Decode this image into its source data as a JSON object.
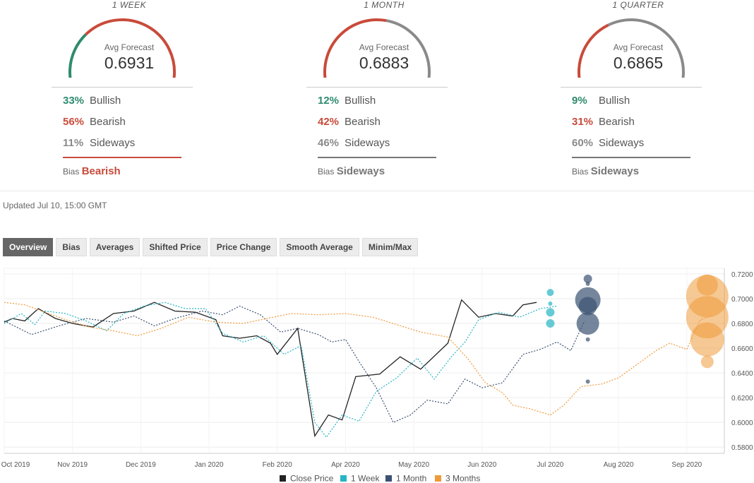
{
  "panels": [
    {
      "title": "1 WEEK",
      "avg_label": "Avg Forecast",
      "avg_value": "0.6931",
      "gauge": {
        "green": 0.33,
        "red": 0.56,
        "gray": 0.11
      },
      "rows": [
        {
          "pct": "33%",
          "label": "Bullish"
        },
        {
          "pct": "56%",
          "label": "Bearish"
        },
        {
          "pct": "11%",
          "label": "Sideways"
        }
      ],
      "bias_label": "Bias",
      "bias_value": "Bearish",
      "bias_color": "#c84b3a"
    },
    {
      "title": "1 MONTH",
      "avg_label": "Avg Forecast",
      "avg_value": "0.6883",
      "gauge": {
        "green": 0.12,
        "red": 0.42,
        "gray": 0.46
      },
      "rows": [
        {
          "pct": "12%",
          "label": "Bullish"
        },
        {
          "pct": "42%",
          "label": "Bearish"
        },
        {
          "pct": "46%",
          "label": "Sideways"
        }
      ],
      "bias_label": "Bias",
      "bias_value": "Sideways",
      "bias_color": "#777777"
    },
    {
      "title": "1 QUARTER",
      "avg_label": "Avg Forecast",
      "avg_value": "0.6865",
      "gauge": {
        "green": 0.09,
        "red": 0.31,
        "gray": 0.6
      },
      "rows": [
        {
          "pct": "9%",
          "label": "Bullish"
        },
        {
          "pct": "31%",
          "label": "Bearish"
        },
        {
          "pct": "60%",
          "label": "Sideways"
        }
      ],
      "bias_label": "Bias",
      "bias_value": "Sideways",
      "bias_color": "#777777"
    }
  ],
  "colors": {
    "bullish": "#2e8b6e",
    "bearish": "#c84b3a",
    "sideways": "#8a8a8a",
    "close": "#222222",
    "week": "#26b5c4",
    "month": "#3b5272",
    "quarter": "#ef9a3a"
  },
  "updated": "Updated Jul 10, 15:00 GMT",
  "tabs": [
    "Overview",
    "Bias",
    "Averages",
    "Shifted Price",
    "Price Change",
    "Smooth Average",
    "Minim/Max"
  ],
  "active_tab": 0,
  "chart_data": {
    "type": "line",
    "x_ticks": [
      "Oct 2019",
      "Nov 2019",
      "Dec 2019",
      "Jan 2020",
      "Feb 2020",
      "Apr 2020",
      "May 2020",
      "Jun 2020",
      "Jul 2020",
      "Aug 2020",
      "Sep 2020"
    ],
    "x_tick_months": [
      0,
      1,
      2,
      3,
      4,
      5,
      6,
      7,
      8,
      9,
      10
    ],
    "y_ticks": [
      "0.7200",
      "0.7000",
      "0.6800",
      "0.6600",
      "0.6400",
      "0.6200",
      "0.6000",
      "0.5800"
    ],
    "ylim": [
      0.575,
      0.7245
    ],
    "xlim": [
      0,
      10.55
    ],
    "legend": [
      "Close Price",
      "1 Week",
      "1 Month",
      "3 Months"
    ],
    "series": [
      {
        "name": "Close Price",
        "style": "solid",
        "points": [
          [
            0,
            0.681
          ],
          [
            0.12,
            0.684
          ],
          [
            0.3,
            0.682
          ],
          [
            0.5,
            0.692
          ],
          [
            0.75,
            0.684
          ],
          [
            1,
            0.68
          ],
          [
            1.3,
            0.677
          ],
          [
            1.6,
            0.688
          ],
          [
            1.9,
            0.69
          ],
          [
            2.2,
            0.697
          ],
          [
            2.5,
            0.69
          ],
          [
            2.8,
            0.689
          ],
          [
            3.1,
            0.683
          ],
          [
            3.2,
            0.67
          ],
          [
            3.45,
            0.668
          ],
          [
            3.7,
            0.67
          ],
          [
            3.9,
            0.664
          ],
          [
            4.0,
            0.655
          ],
          [
            4.3,
            0.676
          ],
          [
            4.55,
            0.589
          ],
          [
            4.75,
            0.606
          ],
          [
            4.95,
            0.602
          ],
          [
            5.15,
            0.637
          ],
          [
            5.5,
            0.639
          ],
          [
            5.8,
            0.653
          ],
          [
            6.1,
            0.643
          ],
          [
            6.5,
            0.664
          ],
          [
            6.7,
            0.699
          ],
          [
            6.95,
            0.685
          ],
          [
            7.2,
            0.688
          ],
          [
            7.45,
            0.686
          ],
          [
            7.6,
            0.695
          ],
          [
            7.8,
            0.697
          ]
        ]
      },
      {
        "name": "1 Week",
        "style": "dotted",
        "points": [
          [
            0,
            0.68
          ],
          [
            0.25,
            0.688
          ],
          [
            0.45,
            0.679
          ],
          [
            0.6,
            0.69
          ],
          [
            0.9,
            0.688
          ],
          [
            1.2,
            0.682
          ],
          [
            1.5,
            0.674
          ],
          [
            1.75,
            0.688
          ],
          [
            2.05,
            0.694
          ],
          [
            2.35,
            0.697
          ],
          [
            2.65,
            0.692
          ],
          [
            2.95,
            0.692
          ],
          [
            3.2,
            0.672
          ],
          [
            3.5,
            0.665
          ],
          [
            3.8,
            0.67
          ],
          [
            4.1,
            0.655
          ],
          [
            4.35,
            0.662
          ],
          [
            4.55,
            0.6
          ],
          [
            4.72,
            0.588
          ],
          [
            4.95,
            0.606
          ],
          [
            5.2,
            0.601
          ],
          [
            5.45,
            0.625
          ],
          [
            5.75,
            0.636
          ],
          [
            6.05,
            0.652
          ],
          [
            6.3,
            0.635
          ],
          [
            6.55,
            0.653
          ],
          [
            6.75,
            0.665
          ],
          [
            6.95,
            0.683
          ],
          [
            7.25,
            0.689
          ],
          [
            7.55,
            0.685
          ],
          [
            7.85,
            0.692
          ],
          [
            8.1,
            0.694
          ]
        ]
      },
      {
        "name": "1 Month",
        "style": "dotted",
        "points": [
          [
            0,
            0.682
          ],
          [
            0.4,
            0.671
          ],
          [
            0.8,
            0.678
          ],
          [
            1.2,
            0.684
          ],
          [
            1.6,
            0.681
          ],
          [
            1.9,
            0.686
          ],
          [
            2.2,
            0.678
          ],
          [
            2.5,
            0.684
          ],
          [
            2.9,
            0.69
          ],
          [
            3.2,
            0.687
          ],
          [
            3.45,
            0.694
          ],
          [
            3.75,
            0.687
          ],
          [
            4.05,
            0.673
          ],
          [
            4.3,
            0.676
          ],
          [
            4.6,
            0.671
          ],
          [
            4.8,
            0.665
          ],
          [
            5.0,
            0.667
          ],
          [
            5.2,
            0.649
          ],
          [
            5.45,
            0.628
          ],
          [
            5.7,
            0.6
          ],
          [
            5.95,
            0.606
          ],
          [
            6.2,
            0.618
          ],
          [
            6.5,
            0.615
          ],
          [
            6.75,
            0.635
          ],
          [
            7.0,
            0.628
          ],
          [
            7.3,
            0.632
          ],
          [
            7.6,
            0.655
          ],
          [
            7.85,
            0.659
          ],
          [
            8.1,
            0.665
          ],
          [
            8.3,
            0.658
          ],
          [
            8.5,
            0.682
          ]
        ]
      },
      {
        "name": "3 Months",
        "style": "dotted",
        "points": [
          [
            0,
            0.697
          ],
          [
            0.3,
            0.695
          ],
          [
            0.6,
            0.689
          ],
          [
            0.9,
            0.683
          ],
          [
            1.25,
            0.677
          ],
          [
            1.6,
            0.674
          ],
          [
            1.95,
            0.67
          ],
          [
            2.3,
            0.676
          ],
          [
            2.7,
            0.685
          ],
          [
            3.1,
            0.681
          ],
          [
            3.5,
            0.68
          ],
          [
            3.85,
            0.684
          ],
          [
            4.2,
            0.688
          ],
          [
            4.6,
            0.687
          ],
          [
            5.0,
            0.688
          ],
          [
            5.4,
            0.685
          ],
          [
            5.75,
            0.679
          ],
          [
            6.1,
            0.673
          ],
          [
            6.5,
            0.669
          ],
          [
            6.8,
            0.651
          ],
          [
            7.05,
            0.632
          ],
          [
            7.3,
            0.624
          ],
          [
            7.45,
            0.614
          ],
          [
            7.7,
            0.611
          ],
          [
            8.0,
            0.606
          ],
          [
            8.2,
            0.614
          ],
          [
            8.45,
            0.629
          ],
          [
            8.75,
            0.631
          ],
          [
            9.0,
            0.636
          ],
          [
            9.3,
            0.648
          ],
          [
            9.55,
            0.658
          ],
          [
            9.75,
            0.664
          ],
          [
            10.0,
            0.659
          ],
          [
            10.2,
            0.683
          ],
          [
            10.35,
            0.686
          ]
        ]
      }
    ],
    "bubbles": [
      {
        "series": "1 Week",
        "x": 8.0,
        "y": 0.705,
        "r": 5
      },
      {
        "series": "1 Week",
        "x": 8.0,
        "y": 0.696,
        "r": 3
      },
      {
        "series": "1 Week",
        "x": 8.0,
        "y": 0.689,
        "r": 6
      },
      {
        "series": "1 Week",
        "x": 8.0,
        "y": 0.68,
        "r": 6
      },
      {
        "series": "1 Month",
        "x": 8.55,
        "y": 0.716,
        "r": 6
      },
      {
        "series": "1 Month",
        "x": 8.55,
        "y": 0.712,
        "r": 3
      },
      {
        "series": "1 Month",
        "x": 8.55,
        "y": 0.699,
        "r": 18
      },
      {
        "series": "1 Month",
        "x": 8.55,
        "y": 0.694,
        "r": 13
      },
      {
        "series": "1 Month",
        "x": 8.55,
        "y": 0.68,
        "r": 16
      },
      {
        "series": "1 Month",
        "x": 8.55,
        "y": 0.667,
        "r": 3
      },
      {
        "series": "1 Month",
        "x": 8.55,
        "y": 0.633,
        "r": 3
      },
      {
        "series": "3 Months",
        "x": 10.3,
        "y": 0.711,
        "r": 15
      },
      {
        "series": "3 Months",
        "x": 10.3,
        "y": 0.702,
        "r": 30
      },
      {
        "series": "3 Months",
        "x": 10.3,
        "y": 0.685,
        "r": 30
      },
      {
        "series": "3 Months",
        "x": 10.3,
        "y": 0.667,
        "r": 24
      },
      {
        "series": "3 Months",
        "x": 10.3,
        "y": 0.649,
        "r": 9
      }
    ]
  }
}
